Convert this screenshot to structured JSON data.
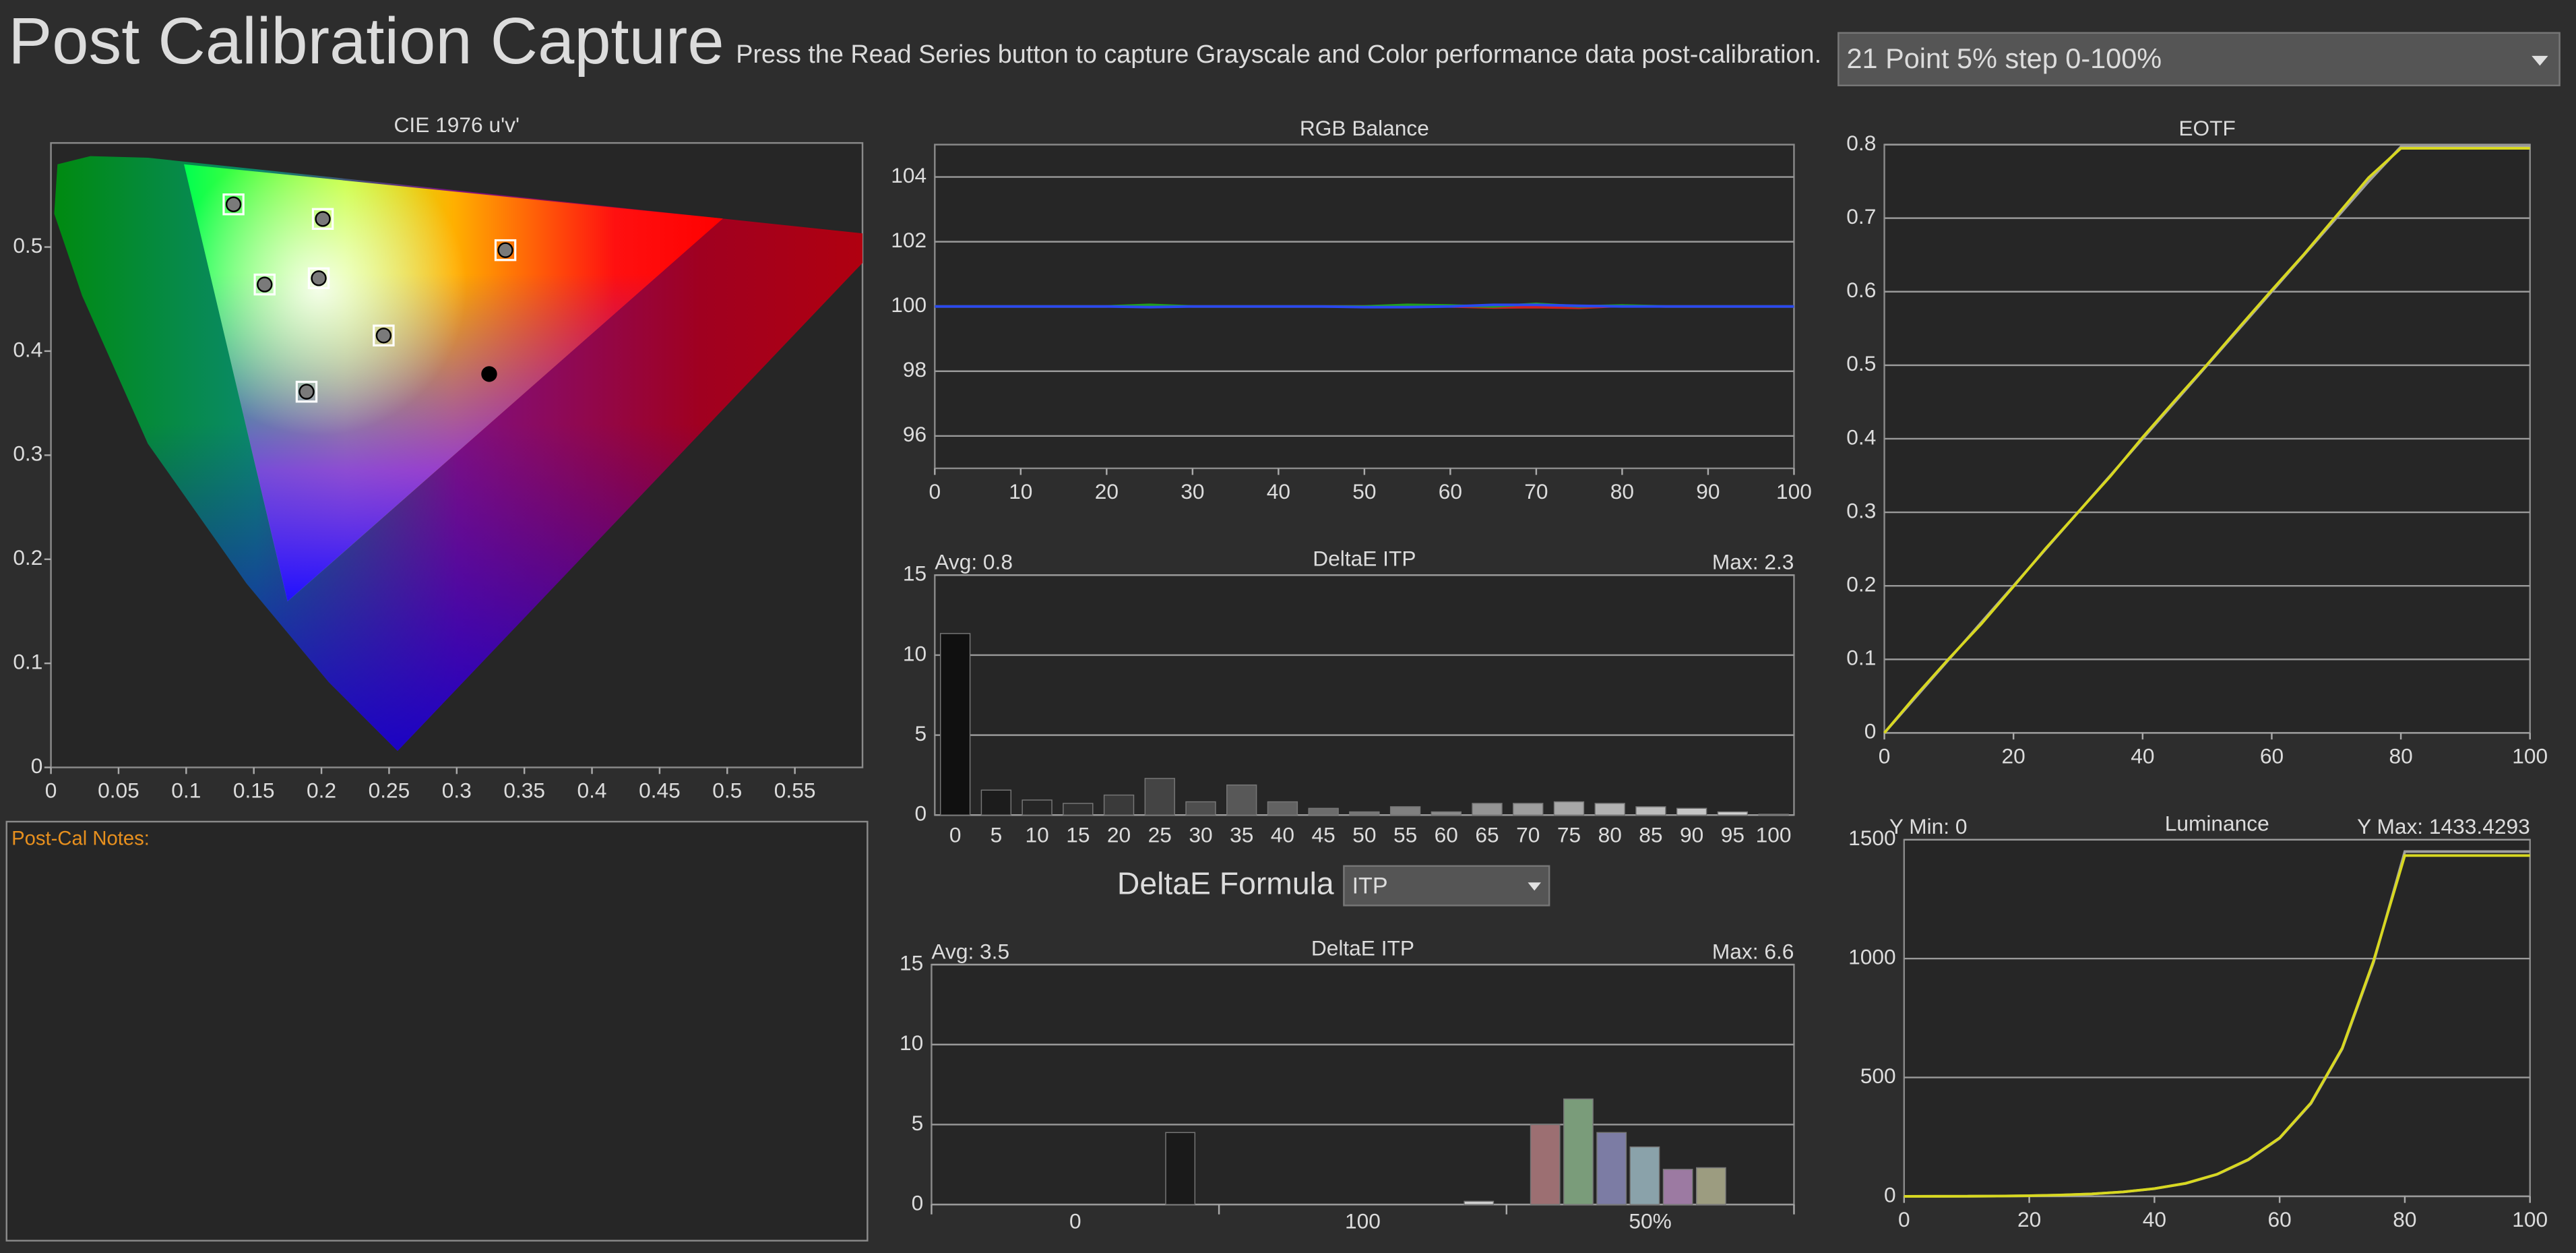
{
  "header": {
    "title": "Post Calibration Capture",
    "instruction": "Press the Read Series button to capture Grayscale and Color performance data post-calibration.",
    "series_select": "21 Point 5% step 0-100%"
  },
  "notes": {
    "label": "Post-Cal Notes:"
  },
  "formula": {
    "label": "DeltaE Formula",
    "value": "ITP"
  },
  "chart_data": [
    {
      "type": "scatter",
      "title": "CIE 1976 u'v'",
      "grid": false,
      "xlim": [
        0,
        0.6
      ],
      "ylim": [
        0,
        0.6
      ],
      "xticks": [
        0,
        0.05,
        0.1,
        0.15,
        0.2,
        0.25,
        0.3,
        0.35,
        0.4,
        0.45,
        0.5,
        0.55
      ],
      "yticks": [
        0,
        0.1,
        0.2,
        0.3,
        0.4,
        0.5
      ],
      "series": [
        {
          "color": "#7a7a7a",
          "x": [
            0.135,
            0.201,
            0.336,
            0.158,
            0.198,
            0.246,
            0.189
          ],
          "values": [
            0.541,
            0.527,
            0.497,
            0.464,
            0.47,
            0.415,
            0.361
          ]
        },
        {
          "color": "#000000",
          "x": [
            0.324
          ],
          "values": [
            0.378
          ]
        }
      ]
    },
    {
      "type": "line",
      "title": "RGB Balance",
      "grid": true,
      "xlim": [
        0,
        100
      ],
      "ylim": [
        95,
        105
      ],
      "xticks": [
        0,
        10,
        20,
        30,
        40,
        50,
        60,
        70,
        80,
        90,
        100
      ],
      "yticks": [
        96,
        98,
        100,
        102,
        104
      ],
      "x": [
        0,
        5,
        10,
        15,
        20,
        25,
        30,
        35,
        40,
        45,
        50,
        55,
        60,
        65,
        70,
        75,
        80,
        85,
        90,
        95,
        100
      ],
      "series": [
        {
          "color": "#d02020",
          "values": [
            100,
            100,
            100,
            100,
            100,
            100.02,
            100,
            100,
            100,
            100,
            100,
            100.03,
            100,
            99.97,
            99.98,
            99.96,
            100.02,
            100,
            100,
            100,
            100
          ]
        },
        {
          "color": "#20a020",
          "values": [
            100,
            100,
            100,
            100,
            100,
            100.05,
            100,
            100,
            100,
            100,
            100,
            100.05,
            100.03,
            100,
            100.08,
            100,
            100.03,
            100,
            100,
            100,
            100
          ]
        },
        {
          "color": "#2a48f0",
          "values": [
            100,
            100,
            100,
            100,
            100,
            99.98,
            100,
            100,
            100,
            100,
            99.98,
            99.98,
            100,
            100.05,
            100.05,
            100.02,
            100,
            100,
            100,
            100,
            100
          ]
        }
      ]
    },
    {
      "type": "bar",
      "title": "DeltaE ITP",
      "avg_label": "Avg: 0.8",
      "max_label": "Max: 2.3",
      "grid": true,
      "ylim": [
        0,
        15
      ],
      "yticks": [
        0,
        5,
        10,
        15
      ],
      "categories": [
        "0",
        "5",
        "10",
        "15",
        "20",
        "25",
        "30",
        "35",
        "40",
        "45",
        "50",
        "55",
        "60",
        "65",
        "70",
        "75",
        "80",
        "85",
        "90",
        "95",
        "100"
      ],
      "values": [
        11.35,
        1.56,
        0.94,
        0.73,
        1.25,
        2.29,
        0.83,
        1.88,
        0.83,
        0.42,
        0.2,
        0.52,
        0.2,
        0.73,
        0.73,
        0.83,
        0.73,
        0.52,
        0.42,
        0.2,
        0.05
      ],
      "colors": [
        "#101010",
        "#1c1c1c",
        "#262626",
        "#303030",
        "#3a3a3a",
        "#444444",
        "#4e4e4e",
        "#585858",
        "#626262",
        "#6c6c6c",
        "#767676",
        "#808080",
        "#8a8a8a",
        "#949494",
        "#9e9e9e",
        "#a8a8a8",
        "#b2b2b2",
        "#bcbcbc",
        "#c6c6c6",
        "#d0d0d0",
        "#dadada"
      ]
    },
    {
      "type": "bar",
      "title": "DeltaE ITP",
      "avg_label": "Avg: 3.5",
      "max_label": "Max: 6.6",
      "grid": true,
      "ylim": [
        0,
        15
      ],
      "yticks": [
        0,
        5,
        10,
        15
      ],
      "group_labels": [
        "0",
        "100",
        "50%"
      ],
      "categories": [
        null,
        null,
        null,
        null,
        null,
        null,
        null,
        null,
        null,
        null,
        null,
        null,
        null,
        null,
        null,
        null,
        null,
        null,
        null,
        null,
        null,
        null,
        null,
        null,
        null,
        null
      ],
      "values": [
        null,
        null,
        null,
        null,
        null,
        null,
        null,
        4.5,
        null,
        null,
        null,
        null,
        null,
        null,
        null,
        null,
        0.2,
        null,
        5.0,
        6.6,
        4.5,
        3.6,
        2.2,
        2.3,
        null,
        null
      ],
      "colors": [
        null,
        null,
        null,
        null,
        null,
        null,
        null,
        "#1a1a1a",
        null,
        null,
        null,
        null,
        null,
        null,
        null,
        null,
        "#d0d0d0",
        null,
        "#9c6f72",
        "#7a9c7a",
        "#7c7ca4",
        "#8aa2aa",
        "#9c7aa2",
        "#9c9c80",
        null,
        null
      ]
    },
    {
      "type": "line",
      "title": "EOTF",
      "grid": true,
      "xlim": [
        0,
        100
      ],
      "ylim": [
        0,
        0.8
      ],
      "xticks": [
        0,
        20,
        40,
        60,
        80,
        100
      ],
      "yticks": [
        0,
        0.1,
        0.2,
        0.3,
        0.4,
        0.5,
        0.6,
        0.7,
        0.8
      ],
      "x": [
        0,
        5,
        10,
        15,
        20,
        25,
        30,
        35,
        40,
        45,
        50,
        55,
        60,
        65,
        70,
        75,
        80,
        85,
        90,
        95,
        100
      ],
      "series": [
        {
          "color": "#a0a0a0",
          "values": [
            0,
            0.05,
            0.1,
            0.15,
            0.2,
            0.25,
            0.3,
            0.35,
            0.4,
            0.45,
            0.5,
            0.55,
            0.6,
            0.65,
            0.7,
            0.75,
            0.797,
            0.797,
            0.797,
            0.797,
            0.797
          ]
        },
        {
          "color": "#d8d820",
          "values": [
            0,
            0.052,
            0.101,
            0.148,
            0.199,
            0.251,
            0.3,
            0.349,
            0.402,
            0.452,
            0.501,
            0.552,
            0.602,
            0.651,
            0.703,
            0.755,
            0.795,
            0.795,
            0.795,
            0.795,
            0.795
          ]
        }
      ]
    },
    {
      "type": "line",
      "title": "Luminance",
      "ymin_label": "Y Min: 0",
      "ymax_label": "Y Max: 1433.4293",
      "grid": true,
      "xlim": [
        0,
        100
      ],
      "ylim": [
        0,
        1500
      ],
      "xticks": [
        0,
        20,
        40,
        60,
        80,
        100
      ],
      "yticks": [
        0,
        500,
        1000,
        1500
      ],
      "x": [
        0,
        5,
        10,
        15,
        20,
        25,
        30,
        35,
        40,
        45,
        50,
        55,
        60,
        65,
        70,
        75,
        80,
        85,
        90,
        95,
        100
      ],
      "series": [
        {
          "color": "#a0a0a0",
          "values": [
            0,
            0.05,
            0.32,
            1.0,
            2.4,
            5.2,
            10,
            18.4,
            32,
            54,
            92,
            153,
            244,
            390,
            620,
            983,
            1450,
            1450,
            1450,
            1450,
            1450
          ]
        },
        {
          "color": "#d8d820",
          "values": [
            0,
            0.06,
            0.33,
            1.0,
            2.5,
            5.3,
            10.2,
            18.6,
            32.5,
            54.8,
            93,
            155,
            246,
            393,
            624,
            990,
            1433.4293,
            1433.4293,
            1433.4293,
            1433.4293,
            1433.4293
          ]
        }
      ]
    }
  ]
}
